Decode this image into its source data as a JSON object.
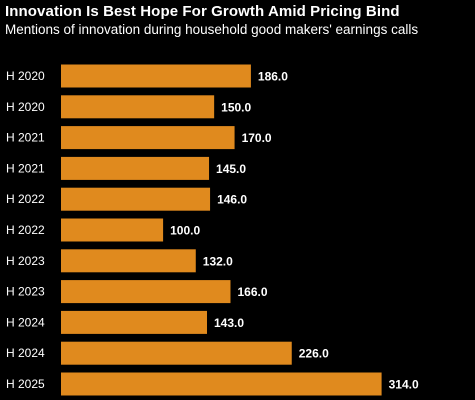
{
  "chart_data": {
    "type": "bar",
    "orientation": "horizontal",
    "title": "Innovation Is Best Hope For Growth Amid Pricing Bind",
    "subtitle": "Mentions of innovation during household good makers' earnings calls",
    "categories": [
      "H 2020",
      "H 2020",
      "H 2021",
      "H 2021",
      "H 2022",
      "H 2022",
      "H 2023",
      "H 2023",
      "H 2024",
      "H 2024",
      "H 2025"
    ],
    "value_labels": [
      "186.0",
      "150.0",
      "170.0",
      "145.0",
      "146.0",
      "100.0",
      "132.0",
      "166.0",
      "143.0",
      "226.0",
      "314.0"
    ],
    "values": [
      186,
      150,
      170,
      145,
      146,
      100,
      132,
      166,
      143,
      226,
      314
    ],
    "xlim": [
      0,
      330
    ],
    "grid": false,
    "bar_color": "#E08A1E",
    "background_color": "#000000",
    "text_color": "#FFFFFF"
  }
}
